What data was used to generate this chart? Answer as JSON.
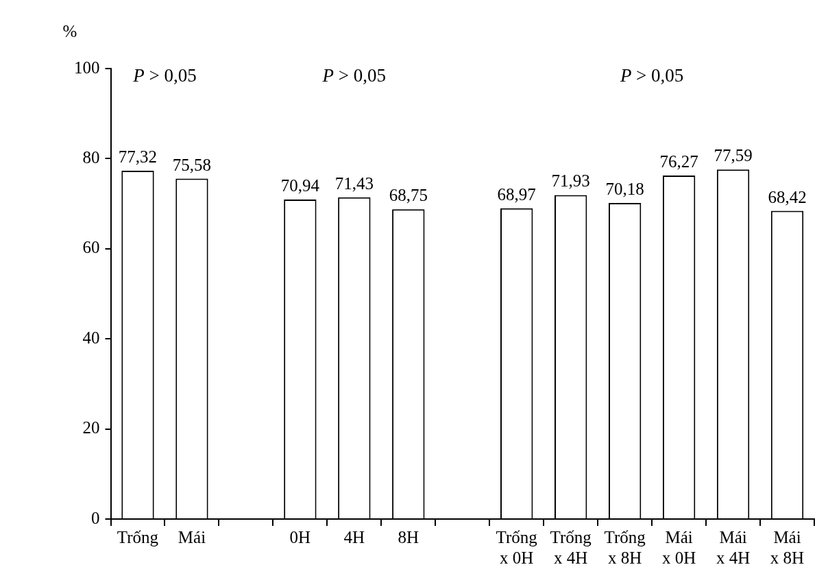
{
  "chart_data": {
    "type": "bar",
    "ylabel": "%",
    "categories": [
      "Trống",
      "Mái",
      null,
      "0H",
      "4H",
      "8H",
      null,
      "Trống x 0H",
      "Trống x 4H",
      "Trống x 8H",
      "Mái x 0H",
      "Mái x 4H",
      "Mái x 8H"
    ],
    "values": [
      77.32,
      75.58,
      null,
      70.94,
      71.43,
      68.75,
      null,
      68.97,
      71.93,
      70.18,
      76.27,
      77.59,
      68.42
    ],
    "value_labels": [
      "77,32",
      "75,58",
      null,
      "70,94",
      "71,43",
      "68,75",
      null,
      "68,97",
      "71,93",
      "70,18",
      "76,27",
      "77,59",
      "68,42"
    ],
    "color": "#ffffff",
    "ylim": [
      0,
      100
    ],
    "yticks": [
      0,
      20,
      40,
      60,
      80,
      100
    ],
    "grid": false,
    "legend": false,
    "annotations": [
      "P > 0,05",
      "P > 0,05",
      "P > 0,05"
    ]
  }
}
